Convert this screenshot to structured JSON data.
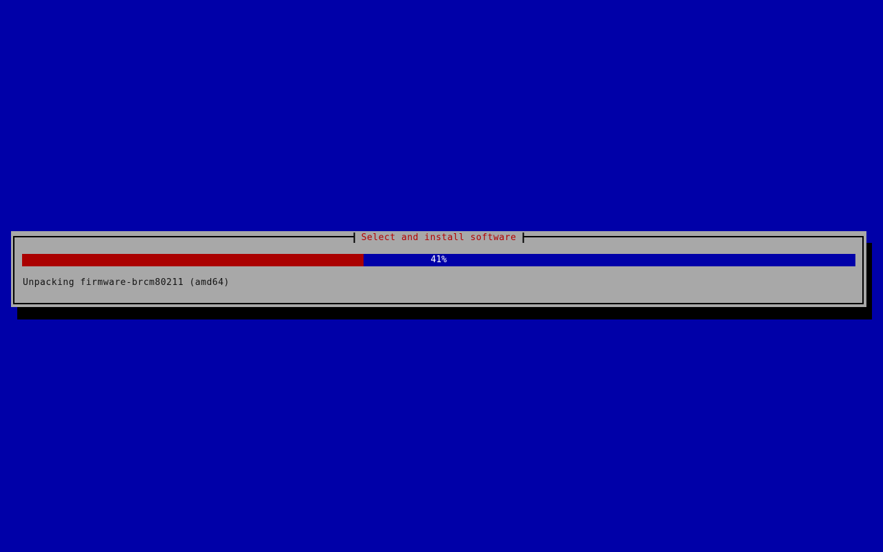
{
  "screen": {
    "background": "#0000A8"
  },
  "dialog": {
    "title": "Select and install software",
    "title_color": "#B40000",
    "background": "#A8A8A8",
    "border_color": "#000000",
    "shadow_color": "#000000",
    "status_text": "Unpacking firmware-brcm80211 (amd64)",
    "status_text_color": "#111111"
  },
  "progress": {
    "percent": 41,
    "label": "41%",
    "fill_color": "#AA0000",
    "track_color": "#0000A8",
    "label_color": "#FFFFFF"
  }
}
